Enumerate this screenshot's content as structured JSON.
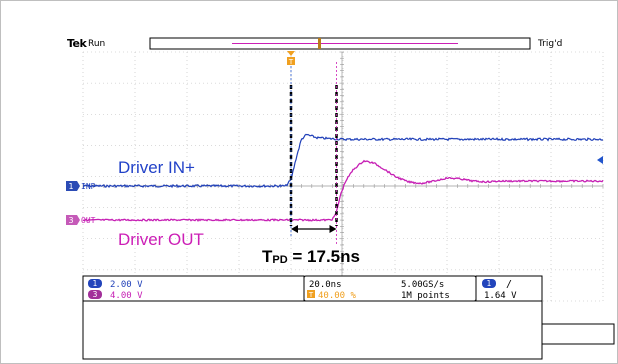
{
  "header": {
    "brand": "Tek",
    "status": "Run",
    "trigger_status": "Trig'd"
  },
  "markers": {
    "trigger_position": "T",
    "ch1_label": "INP",
    "ch3_label": "OUT"
  },
  "annotations": {
    "input_label": "Driver IN+",
    "output_label": "Driver OUT",
    "tpd_prefix": "T",
    "tpd_sub": "PD",
    "tpd_value": " = 17.5ns"
  },
  "readout": {
    "ch1": {
      "num": "1",
      "scale": "2.00 V"
    },
    "ch3": {
      "num": "3",
      "scale": "4.00 V"
    },
    "timebase": "20.0ns",
    "trigger_pos_icon": "T",
    "trigger_pos": "40.00 %",
    "sample_rate": "5.00GS/s",
    "record_length": "1M points",
    "trig_source": "1",
    "trig_slope": "/",
    "trig_level": "1.64 V"
  },
  "colors": {
    "ch1": "#1f3fb8",
    "ch3": "#c61fb4",
    "trigger": "#f0a020",
    "tpd_marker": "#000000"
  },
  "chart_data": {
    "type": "line",
    "title": "",
    "xlabel": "",
    "ylabel": "",
    "x_unit": "ns",
    "xlim": [
      -80,
      120
    ],
    "grid": true,
    "series": [
      {
        "name": "INP",
        "x": [
          -80,
          -10,
          -2,
          0,
          2,
          4,
          6,
          8,
          10,
          14,
          20,
          30,
          40,
          60,
          80,
          120
        ],
        "y": [
          0,
          0,
          0,
          0.4,
          1.8,
          3.0,
          3.3,
          3.2,
          3.1,
          3.05,
          3.0,
          3.0,
          3.0,
          3.0,
          3.0,
          3.0
        ]
      },
      {
        "name": "OUT",
        "x": [
          -80,
          10,
          14,
          16,
          17.5,
          19,
          21,
          24,
          28,
          32,
          36,
          40,
          45,
          50,
          55,
          60,
          65,
          70,
          75,
          80,
          90,
          100,
          120
        ],
        "y": [
          0,
          0,
          0,
          0.1,
          1.0,
          3.2,
          5.0,
          6.5,
          7.6,
          7.3,
          6.5,
          5.6,
          4.9,
          4.7,
          5.0,
          5.4,
          5.3,
          5.0,
          4.9,
          5.0,
          5.0,
          5.0,
          5.0
        ]
      }
    ],
    "measurement": {
      "start_ns": 0,
      "end_ns": 17.5,
      "label": "TPD = 17.5ns"
    }
  }
}
